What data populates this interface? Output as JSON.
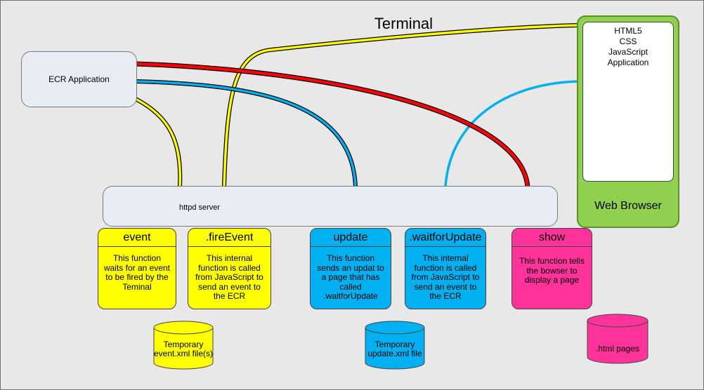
{
  "title": "Terminal",
  "ecr_app": {
    "label": "ECR Application"
  },
  "httpd": {
    "label": "httpd server"
  },
  "browser": {
    "label": "Web Browser",
    "lines": [
      "HTML5",
      "CSS",
      "JavaScript",
      "Application"
    ],
    "color": "#8fd14f"
  },
  "functions": [
    {
      "name": "event",
      "desc": "This function waits for an event to be fired by the Teminal",
      "color": "#ffff00"
    },
    {
      "name": ".fireEvent",
      "desc": "This internal function is called from JavaScript to send an event to the ECR",
      "color": "#ffff00"
    },
    {
      "name": "update",
      "desc": "This function sends an updat to a page that has called .waitforUpdate",
      "color": "#00b0f0"
    },
    {
      "name": ".waitforUpdate",
      "desc": "This internal function is called from JavaScript to send an event to the ECR",
      "color": "#00b0f0"
    },
    {
      "name": "show",
      "desc": "This function tells the bowser to display a page",
      "color": "#ff3399"
    }
  ],
  "stores": [
    {
      "label": "Temporary event.xml file(s)",
      "color": "#ffff00"
    },
    {
      "label": "Temporary update.xml file",
      "color": "#00b0f0"
    },
    {
      "label": ".html pages",
      "color": "#ff3399"
    }
  ],
  "wire_colors": {
    "yellow": "#ffff00",
    "blue": "#00b0f0",
    "red": "#ff0000"
  }
}
